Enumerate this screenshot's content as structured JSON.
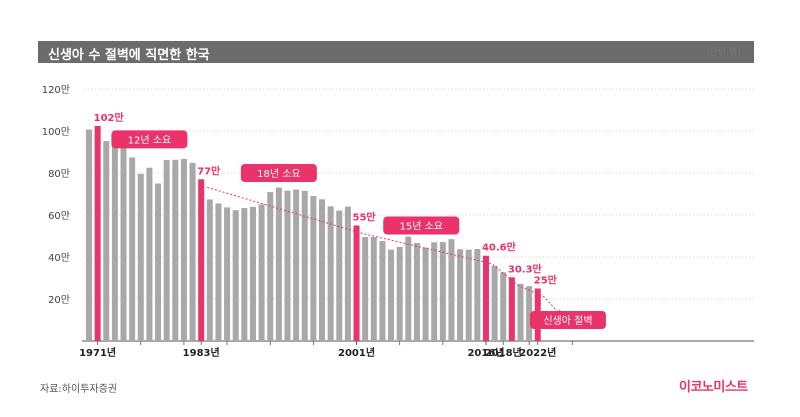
{
  "header": {
    "title": "신생아 수 절벽에 직면한 한국",
    "unit": "(단위:명)"
  },
  "footer": {
    "source": "자료:하이투자증권",
    "brand": "이코노미스트"
  },
  "colors": {
    "bar": "#a8a8a8",
    "highlight": "#e9336a",
    "title_bg": "#6b6b6b"
  },
  "chart_data": {
    "type": "bar",
    "title": "신생아 수 절벽에 직면한 한국",
    "ylim": [
      0,
      120
    ],
    "yticks": [
      {
        "value": 20,
        "label": "20만"
      },
      {
        "value": 40,
        "label": "40만"
      },
      {
        "value": 60,
        "label": "60만"
      },
      {
        "value": 80,
        "label": "80만"
      },
      {
        "value": 100,
        "label": "100만"
      },
      {
        "value": 120,
        "label": "120만"
      }
    ],
    "grid": true,
    "x_start": 1970,
    "x_end": 2030,
    "x_labels": [
      {
        "year": 1971,
        "label": "1971년"
      },
      {
        "year": 1983,
        "label": "1983년"
      },
      {
        "year": 2001,
        "label": "2001년"
      },
      {
        "year": 2016,
        "label": "2016년"
      },
      {
        "year": 2018,
        "label": "2018년"
      },
      {
        "year": 2022,
        "label": "2022년"
      }
    ],
    "bars": [
      {
        "year": 1970,
        "value": 100.7
      },
      {
        "year": 1971,
        "value": 102.4,
        "highlight": true,
        "label": "102만"
      },
      {
        "year": 1972,
        "value": 95.2
      },
      {
        "year": 1973,
        "value": 96.7
      },
      {
        "year": 1974,
        "value": 92.2
      },
      {
        "year": 1975,
        "value": 87.4
      },
      {
        "year": 1976,
        "value": 79.6
      },
      {
        "year": 1977,
        "value": 82.5
      },
      {
        "year": 1978,
        "value": 75.0
      },
      {
        "year": 1979,
        "value": 86.2
      },
      {
        "year": 1980,
        "value": 86.3
      },
      {
        "year": 1981,
        "value": 86.7
      },
      {
        "year": 1982,
        "value": 84.8
      },
      {
        "year": 1983,
        "value": 77.0,
        "highlight": true,
        "label": "77만"
      },
      {
        "year": 1984,
        "value": 67.4
      },
      {
        "year": 1985,
        "value": 65.5
      },
      {
        "year": 1986,
        "value": 63.6
      },
      {
        "year": 1987,
        "value": 62.3
      },
      {
        "year": 1988,
        "value": 63.3
      },
      {
        "year": 1989,
        "value": 63.9
      },
      {
        "year": 1990,
        "value": 65.0
      },
      {
        "year": 1991,
        "value": 70.9
      },
      {
        "year": 1992,
        "value": 73.1
      },
      {
        "year": 1993,
        "value": 71.6
      },
      {
        "year": 1994,
        "value": 72.1
      },
      {
        "year": 1995,
        "value": 71.5
      },
      {
        "year": 1996,
        "value": 69.1
      },
      {
        "year": 1997,
        "value": 67.5
      },
      {
        "year": 1998,
        "value": 64.1
      },
      {
        "year": 1999,
        "value": 62.1
      },
      {
        "year": 2000,
        "value": 64.0
      },
      {
        "year": 2001,
        "value": 55.0,
        "highlight": true,
        "label": "55만"
      },
      {
        "year": 2002,
        "value": 49.5
      },
      {
        "year": 2003,
        "value": 49.5
      },
      {
        "year": 2004,
        "value": 47.6
      },
      {
        "year": 2005,
        "value": 43.5
      },
      {
        "year": 2006,
        "value": 44.8
      },
      {
        "year": 2007,
        "value": 49.7
      },
      {
        "year": 2008,
        "value": 46.6
      },
      {
        "year": 2009,
        "value": 44.5
      },
      {
        "year": 2010,
        "value": 47.0
      },
      {
        "year": 2011,
        "value": 47.1
      },
      {
        "year": 2012,
        "value": 48.5
      },
      {
        "year": 2013,
        "value": 43.7
      },
      {
        "year": 2014,
        "value": 43.5
      },
      {
        "year": 2015,
        "value": 43.8
      },
      {
        "year": 2016,
        "value": 40.6,
        "highlight": true,
        "label": "40.6만"
      },
      {
        "year": 2017,
        "value": 35.8
      },
      {
        "year": 2018,
        "value": 32.7
      },
      {
        "year": 2019,
        "value": 30.3,
        "highlight": true,
        "label": "30.3만"
      },
      {
        "year": 2020,
        "value": 27.2
      },
      {
        "year": 2021,
        "value": 26.1
      },
      {
        "year": 2022,
        "value": 25.0,
        "highlight": true,
        "label": "25만"
      }
    ],
    "annotations": [
      {
        "text": "12년 소요",
        "year": 1977,
        "value": 96
      },
      {
        "text": "18년 소요",
        "year": 1992,
        "value": 80
      },
      {
        "text": "15년 소요",
        "year": 2008.5,
        "value": 55
      },
      {
        "text": "신생아 절벽",
        "year": 2025.5,
        "value": 10
      }
    ],
    "trend_points": [
      {
        "year": 1983,
        "value": 77.0
      },
      {
        "year": 2001,
        "value": 55.0
      },
      {
        "year": 2016,
        "value": 40.6
      },
      {
        "year": 2019,
        "value": 30.3
      },
      {
        "year": 2022,
        "value": 25.0
      },
      {
        "year": 2024,
        "value": 16.0
      }
    ]
  }
}
